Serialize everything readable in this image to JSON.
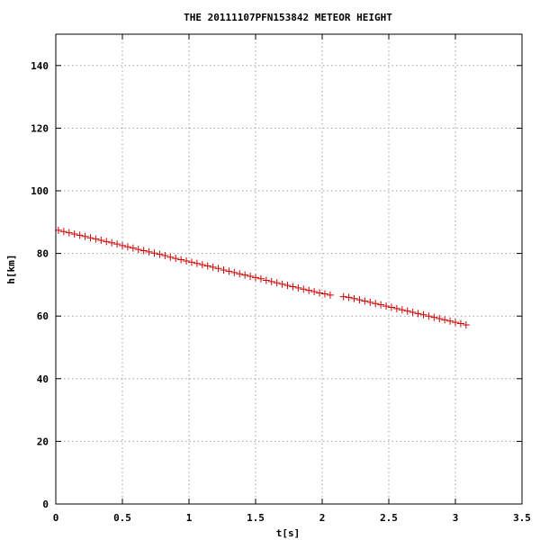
{
  "chart_data": {
    "type": "scatter",
    "title": "THE 20111107PFN153842 METEOR HEIGHT",
    "xlabel": "t[s]",
    "ylabel": "h[km]",
    "xlim": [
      0,
      3.5
    ],
    "ylim": [
      0,
      150
    ],
    "xticks": [
      "0",
      "0.5",
      "1",
      "1.5",
      "2",
      "2.5",
      "3",
      "3.5"
    ],
    "yticks": [
      "0",
      "20",
      "40",
      "60",
      "80",
      "100",
      "120",
      "140"
    ],
    "grid": true,
    "marker": "plus",
    "color": "#cc0000",
    "series": [
      {
        "x": [
          0.02,
          0.06,
          0.1,
          0.14,
          0.18,
          0.22,
          0.26,
          0.3,
          0.34,
          0.38,
          0.42,
          0.46,
          0.5,
          0.54,
          0.58,
          0.62,
          0.66,
          0.7,
          0.74,
          0.78,
          0.82,
          0.86,
          0.9,
          0.94,
          0.98,
          1.02,
          1.06,
          1.1,
          1.14,
          1.18,
          1.22,
          1.26,
          1.3,
          1.34,
          1.38,
          1.42,
          1.46,
          1.5,
          1.54,
          1.58,
          1.62,
          1.66,
          1.7,
          1.74,
          1.78,
          1.82,
          1.86,
          1.9,
          1.94,
          1.98,
          2.02,
          2.06,
          2.16,
          2.2,
          2.24,
          2.28,
          2.32,
          2.36,
          2.4,
          2.44,
          2.48,
          2.52,
          2.56,
          2.6,
          2.64,
          2.68,
          2.72,
          2.76,
          2.8,
          2.84,
          2.88,
          2.92,
          2.96,
          3.0,
          3.04,
          3.08
        ],
        "y": [
          87.4,
          87.0,
          86.6,
          86.2,
          85.8,
          85.4,
          85.0,
          84.6,
          84.2,
          83.8,
          83.4,
          83.0,
          82.5,
          82.1,
          81.7,
          81.3,
          80.9,
          80.5,
          80.1,
          79.7,
          79.3,
          78.8,
          78.4,
          78.0,
          77.6,
          77.2,
          76.8,
          76.4,
          76.0,
          75.6,
          75.2,
          74.7,
          74.3,
          73.9,
          73.5,
          73.1,
          72.7,
          72.3,
          71.9,
          71.4,
          71.0,
          70.6,
          70.2,
          69.8,
          69.4,
          69.0,
          68.6,
          68.2,
          67.8,
          67.4,
          67.1,
          66.7,
          66.2,
          66.0,
          65.6,
          65.2,
          64.8,
          64.4,
          64.0,
          63.6,
          63.2,
          62.8,
          62.4,
          62.0,
          61.6,
          61.2,
          60.8,
          60.4,
          60.0,
          59.6,
          59.2,
          58.8,
          58.4,
          58.0,
          57.6,
          57.2
        ]
      }
    ]
  }
}
